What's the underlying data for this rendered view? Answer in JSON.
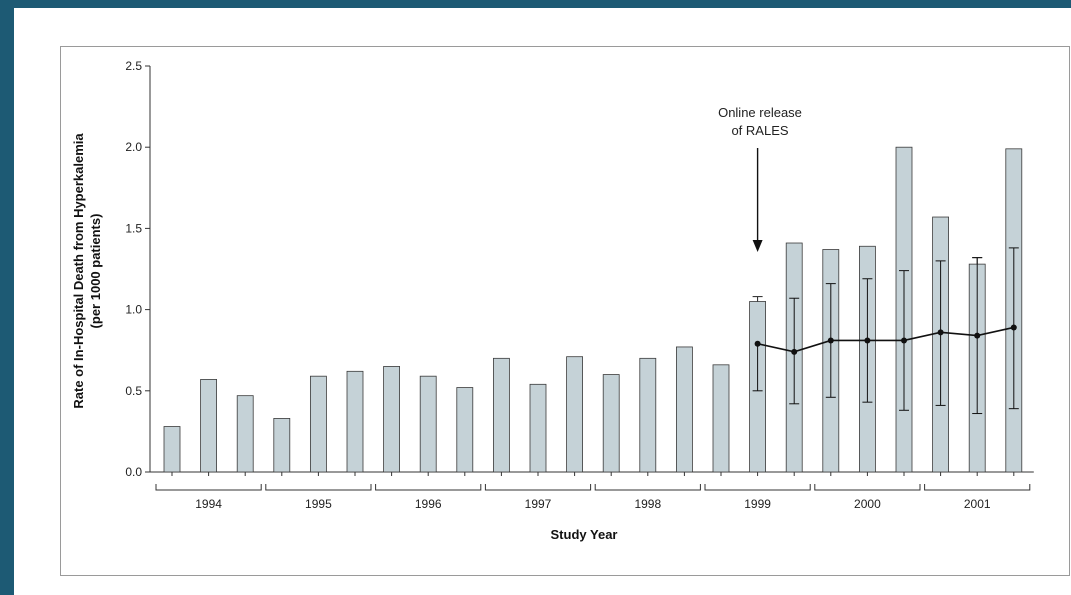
{
  "chart_data": {
    "type": "bar",
    "xlabel": "Study Year",
    "ylabel": "Rate of In-Hospital Death from Hyperkalemia",
    "ylabel2": "(per 1000 patients)",
    "ylim": [
      0,
      2.5
    ],
    "yticks": [
      "0.0",
      "0.5",
      "1.0",
      "1.5",
      "2.0",
      "2.5"
    ],
    "groups": [
      "1994",
      "1995",
      "1996",
      "1997",
      "1998",
      "1999",
      "2000",
      "2001"
    ],
    "bars_per_group": 3,
    "values": [
      0.28,
      0.57,
      0.47,
      0.33,
      0.59,
      0.62,
      0.65,
      0.59,
      0.52,
      0.7,
      0.54,
      0.71,
      0.6,
      0.7,
      0.77,
      0.66,
      1.05,
      1.41,
      1.37,
      1.39,
      2.0,
      1.57,
      1.28,
      1.99
    ],
    "bar_error_upper": [
      null,
      null,
      null,
      null,
      null,
      null,
      null,
      null,
      null,
      null,
      null,
      null,
      null,
      null,
      null,
      null,
      1.08,
      null,
      null,
      null,
      null,
      null,
      1.32,
      null
    ],
    "expected_line": {
      "start_index": 16,
      "values": [
        0.79,
        0.74,
        0.81,
        0.81,
        0.81,
        0.86,
        0.84,
        0.89
      ],
      "ci_low": [
        0.5,
        0.42,
        0.46,
        0.43,
        0.38,
        0.41,
        0.36,
        0.39
      ],
      "ci_high": [
        null,
        1.07,
        1.16,
        1.19,
        1.24,
        1.3,
        1.32,
        1.38
      ]
    },
    "annotation": {
      "lines": [
        "Online release",
        "of RALES"
      ],
      "bar_index": 16
    },
    "colors": {
      "bar_fill": "#c5d2d7",
      "bar_stroke": "#3a3a3a",
      "line": "#111111"
    }
  }
}
